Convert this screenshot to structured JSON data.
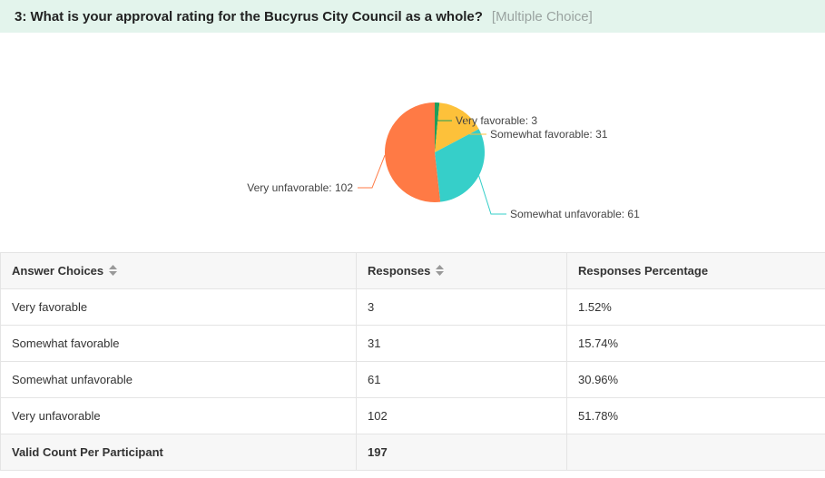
{
  "question": {
    "title": "3: What is your approval rating for the Bucyrus City Council as a whole?",
    "type": "[Multiple Choice]"
  },
  "chart_data": {
    "type": "pie",
    "categories": [
      "Very favorable",
      "Somewhat favorable",
      "Somewhat unfavorable",
      "Very unfavorable"
    ],
    "values": [
      3,
      31,
      61,
      102
    ],
    "labels": [
      "Very favorable: 3",
      "Somewhat favorable: 31",
      "Somewhat unfavorable: 61",
      "Very unfavorable: 102"
    ],
    "colors": [
      "#1e9e5a",
      "#fdc13a",
      "#36cfc9",
      "#ff7a45"
    ],
    "start": "top, clockwise",
    "legend": "none"
  },
  "table": {
    "headers": [
      "Answer Choices",
      "Responses",
      "Responses Percentage"
    ],
    "sort_icon": "sort-arrows-icon",
    "rows": [
      {
        "choice": "Very favorable",
        "responses": "3",
        "percentage": "1.52%"
      },
      {
        "choice": "Somewhat favorable",
        "responses": "31",
        "percentage": "15.74%"
      },
      {
        "choice": "Somewhat unfavorable",
        "responses": "61",
        "percentage": "30.96%"
      },
      {
        "choice": "Very unfavorable",
        "responses": "102",
        "percentage": "51.78%"
      }
    ],
    "total": {
      "label": "Valid Count Per Participant",
      "value": "197"
    }
  }
}
